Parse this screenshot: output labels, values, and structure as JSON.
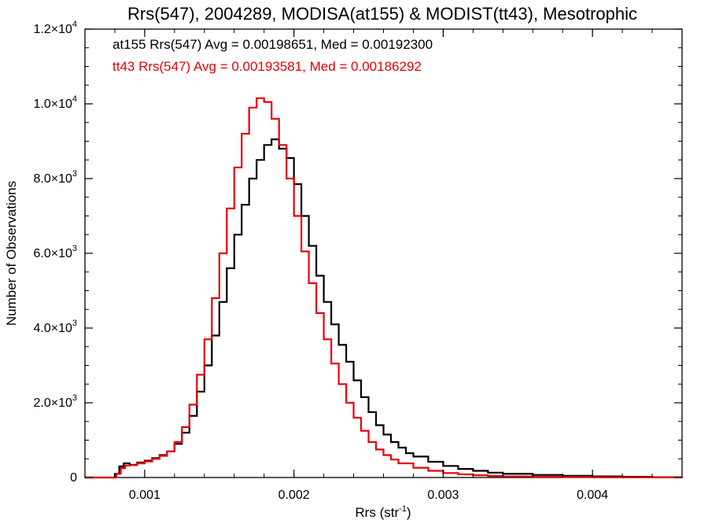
{
  "chart_data": {
    "type": "line",
    "title": "Rrs(547), 2004289, MODISA(at155) & MODIST(tt43), Mesotrophic",
    "xlabel": "Rrs (str",
    "xlabel_sup": "-1",
    "xlabel_close": ")",
    "ylabel": "Number of Observations",
    "xlim": [
      0.0006,
      0.0046
    ],
    "ylim": [
      0,
      12000
    ],
    "grid": false,
    "step": true,
    "x_ticks": [
      {
        "value": 0.001,
        "label": "0.001"
      },
      {
        "value": 0.002,
        "label": "0.002"
      },
      {
        "value": 0.003,
        "label": "0.003"
      },
      {
        "value": 0.004,
        "label": "0.004"
      }
    ],
    "y_ticks": [
      {
        "value": 0,
        "mant": "0",
        "exp": ""
      },
      {
        "value": 2000,
        "mant": "2.0×10",
        "exp": "3"
      },
      {
        "value": 4000,
        "mant": "4.0×10",
        "exp": "3"
      },
      {
        "value": 6000,
        "mant": "6.0×10",
        "exp": "3"
      },
      {
        "value": 8000,
        "mant": "8.0×10",
        "exp": "3"
      },
      {
        "value": 10000,
        "mant": "1.0×10",
        "exp": "4"
      },
      {
        "value": 12000,
        "mant": "1.2×10",
        "exp": "4"
      }
    ],
    "annotations": [
      {
        "text": "at155 Rrs(547) Avg = 0.00198651, Med = 0.00192300",
        "color": "#000000"
      },
      {
        "text": "tt43 Rrs(547) Avg = 0.00193581, Med = 0.00186292",
        "color": "#e8000b"
      }
    ],
    "series": [
      {
        "color": "#000000",
        "x": [
          0.0006,
          0.00078,
          0.0008,
          0.00083,
          0.00086,
          0.0009,
          0.00095,
          0.001,
          0.00105,
          0.0011,
          0.00115,
          0.0012,
          0.00125,
          0.0013,
          0.00135,
          0.0014,
          0.00145,
          0.0015,
          0.00155,
          0.0016,
          0.00165,
          0.0017,
          0.00175,
          0.0018,
          0.00185,
          0.0019,
          0.00195,
          0.002,
          0.00205,
          0.0021,
          0.00215,
          0.0022,
          0.00225,
          0.0023,
          0.00235,
          0.0024,
          0.00245,
          0.0025,
          0.00255,
          0.0026,
          0.00265,
          0.0027,
          0.00275,
          0.0028,
          0.0029,
          0.003,
          0.0031,
          0.0032,
          0.0033,
          0.0034,
          0.0036,
          0.0038,
          0.004,
          0.0042,
          0.0044,
          0.0046
        ],
        "y": [
          0,
          0,
          100,
          300,
          380,
          340,
          400,
          450,
          520,
          600,
          700,
          900,
          1200,
          1650,
          2300,
          3000,
          3800,
          4700,
          5600,
          6500,
          7300,
          8000,
          8500,
          8900,
          9050,
          8800,
          8550,
          7850,
          7000,
          6200,
          5400,
          4700,
          4100,
          3550,
          3100,
          2600,
          2150,
          1750,
          1400,
          1150,
          950,
          800,
          650,
          560,
          420,
          310,
          230,
          180,
          130,
          100,
          70,
          45,
          30,
          18,
          8,
          0
        ]
      },
      {
        "color": "#e8000b",
        "x": [
          0.0006,
          0.00079,
          0.00081,
          0.00084,
          0.00087,
          0.0009,
          0.00095,
          0.001,
          0.00105,
          0.0011,
          0.00115,
          0.0012,
          0.00125,
          0.0013,
          0.00135,
          0.0014,
          0.00145,
          0.0015,
          0.00155,
          0.0016,
          0.00165,
          0.0017,
          0.00175,
          0.0018,
          0.00185,
          0.0019,
          0.00195,
          0.002,
          0.00205,
          0.0021,
          0.00215,
          0.0022,
          0.00225,
          0.0023,
          0.00235,
          0.0024,
          0.00245,
          0.0025,
          0.00255,
          0.0026,
          0.00265,
          0.0027,
          0.0028,
          0.0029,
          0.003,
          0.0031,
          0.0032,
          0.0033,
          0.0034,
          0.0036,
          0.0038,
          0.004,
          0.0042,
          0.0044,
          0.0046
        ],
        "y": [
          0,
          0,
          100,
          250,
          320,
          330,
          380,
          430,
          500,
          580,
          700,
          950,
          1350,
          1950,
          2750,
          3700,
          4800,
          6000,
          7200,
          8300,
          9200,
          9900,
          10150,
          10050,
          9600,
          8900,
          8000,
          7000,
          6050,
          5200,
          4400,
          3700,
          3050,
          2500,
          2000,
          1600,
          1250,
          950,
          750,
          600,
          480,
          380,
          260,
          180,
          120,
          85,
          60,
          40,
          30,
          18,
          12,
          7,
          4,
          2,
          0
        ]
      }
    ]
  }
}
